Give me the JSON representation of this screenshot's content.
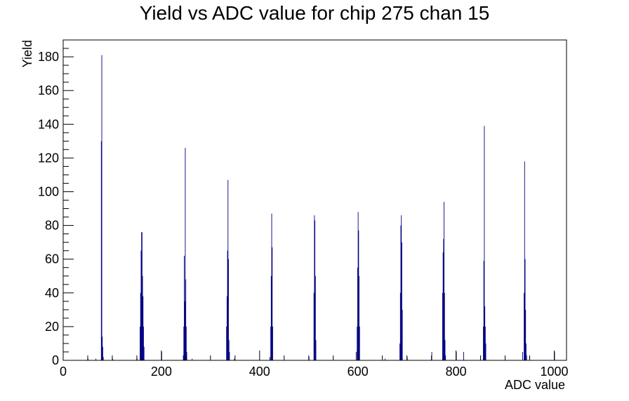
{
  "chart_data": {
    "type": "bar",
    "title": "Yield vs ADC value for chip 275 chan 15",
    "xlabel": "ADC value",
    "ylabel": "Yield",
    "xlim": [
      0,
      1025
    ],
    "ylim": [
      0,
      190
    ],
    "xticks": [
      0,
      200,
      400,
      600,
      800,
      1000
    ],
    "yticks": [
      0,
      20,
      40,
      60,
      80,
      100,
      120,
      140,
      160,
      180
    ],
    "grid": false,
    "legend": "none",
    "color": "#000080",
    "bins": [
      {
        "x": 50,
        "y": 1
      },
      {
        "x": 66,
        "y": 1
      },
      {
        "x": 77,
        "y": 130
      },
      {
        "x": 78,
        "y": 181
      },
      {
        "x": 79,
        "y": 14
      },
      {
        "x": 80,
        "y": 8
      },
      {
        "x": 81,
        "y": 2
      },
      {
        "x": 100,
        "y": 1
      },
      {
        "x": 150,
        "y": 1
      },
      {
        "x": 156,
        "y": 20
      },
      {
        "x": 157,
        "y": 40
      },
      {
        "x": 158,
        "y": 65
      },
      {
        "x": 159,
        "y": 76
      },
      {
        "x": 160,
        "y": 76
      },
      {
        "x": 161,
        "y": 50
      },
      {
        "x": 162,
        "y": 38
      },
      {
        "x": 163,
        "y": 20
      },
      {
        "x": 164,
        "y": 8
      },
      {
        "x": 200,
        "y": 5
      },
      {
        "x": 244,
        "y": 3
      },
      {
        "x": 245,
        "y": 20
      },
      {
        "x": 246,
        "y": 62
      },
      {
        "x": 247,
        "y": 35
      },
      {
        "x": 248,
        "y": 126
      },
      {
        "x": 249,
        "y": 48
      },
      {
        "x": 250,
        "y": 20
      },
      {
        "x": 251,
        "y": 5
      },
      {
        "x": 262,
        "y": 1
      },
      {
        "x": 332,
        "y": 20
      },
      {
        "x": 333,
        "y": 38
      },
      {
        "x": 334,
        "y": 65
      },
      {
        "x": 335,
        "y": 107
      },
      {
        "x": 336,
        "y": 60
      },
      {
        "x": 337,
        "y": 12
      },
      {
        "x": 338,
        "y": 5
      },
      {
        "x": 348,
        "y": 1
      },
      {
        "x": 420,
        "y": 2
      },
      {
        "x": 422,
        "y": 20
      },
      {
        "x": 423,
        "y": 50
      },
      {
        "x": 424,
        "y": 87
      },
      {
        "x": 425,
        "y": 67
      },
      {
        "x": 426,
        "y": 20
      },
      {
        "x": 500,
        "y": 2
      },
      {
        "x": 510,
        "y": 40
      },
      {
        "x": 511,
        "y": 86
      },
      {
        "x": 512,
        "y": 83
      },
      {
        "x": 513,
        "y": 50
      },
      {
        "x": 514,
        "y": 12
      },
      {
        "x": 596,
        "y": 5
      },
      {
        "x": 598,
        "y": 20
      },
      {
        "x": 599,
        "y": 55
      },
      {
        "x": 600,
        "y": 88
      },
      {
        "x": 601,
        "y": 77
      },
      {
        "x": 602,
        "y": 50
      },
      {
        "x": 603,
        "y": 20
      },
      {
        "x": 655,
        "y": 1
      },
      {
        "x": 685,
        "y": 10
      },
      {
        "x": 686,
        "y": 40
      },
      {
        "x": 687,
        "y": 80
      },
      {
        "x": 688,
        "y": 86
      },
      {
        "x": 689,
        "y": 70
      },
      {
        "x": 690,
        "y": 30
      },
      {
        "x": 700,
        "y": 2
      },
      {
        "x": 750,
        "y": 5
      },
      {
        "x": 772,
        "y": 40
      },
      {
        "x": 773,
        "y": 64
      },
      {
        "x": 774,
        "y": 72
      },
      {
        "x": 775,
        "y": 94
      },
      {
        "x": 776,
        "y": 40
      },
      {
        "x": 777,
        "y": 12
      },
      {
        "x": 778,
        "y": 3
      },
      {
        "x": 800,
        "y": 5
      },
      {
        "x": 815,
        "y": 5
      },
      {
        "x": 855,
        "y": 20
      },
      {
        "x": 856,
        "y": 59
      },
      {
        "x": 857,
        "y": 139
      },
      {
        "x": 858,
        "y": 32
      },
      {
        "x": 859,
        "y": 20
      },
      {
        "x": 860,
        "y": 10
      },
      {
        "x": 935,
        "y": 5
      },
      {
        "x": 938,
        "y": 40
      },
      {
        "x": 939,
        "y": 118
      },
      {
        "x": 940,
        "y": 60
      },
      {
        "x": 941,
        "y": 30
      },
      {
        "x": 942,
        "y": 10
      },
      {
        "x": 943,
        "y": 3
      },
      {
        "x": 1000,
        "y": 5
      }
    ]
  }
}
